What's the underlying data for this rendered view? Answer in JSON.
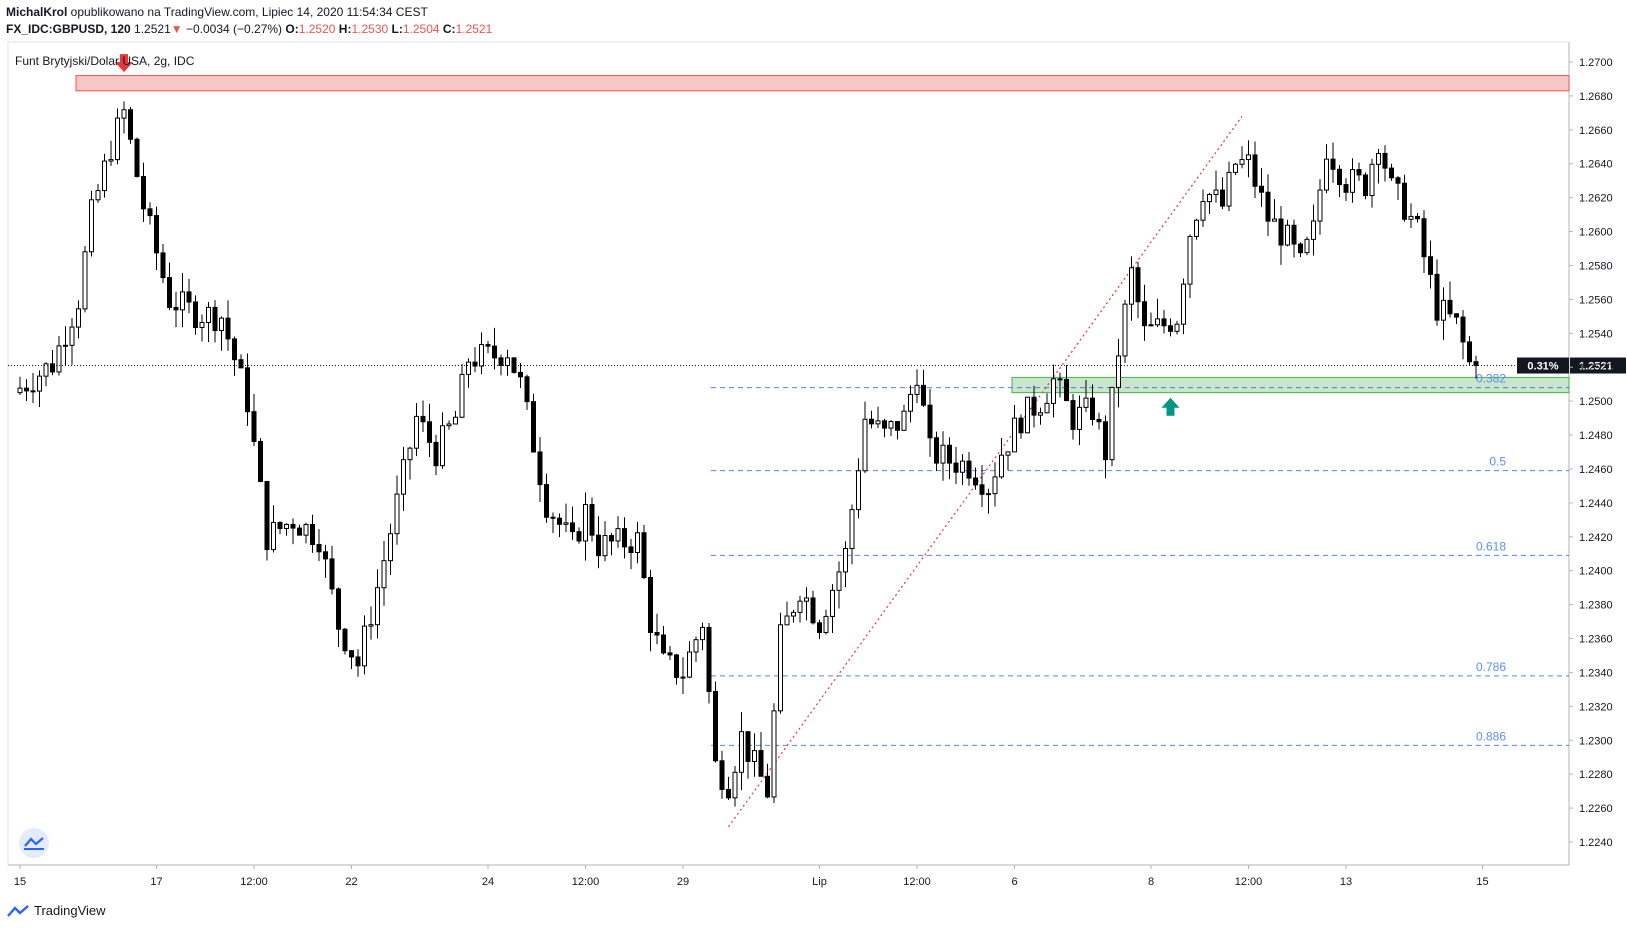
{
  "header": {
    "author": "MichalKrol",
    "published_text": " opublikowano na TradingView.com, Lipiec 14, 2020 11:54:34 CEST",
    "symbol": "FX_IDC:GBPUSD, 120",
    "last": "1.2521",
    "change": "−0.0034 (−0.27%)",
    "open_label": "O:",
    "open": "1.2520",
    "high_label": "H:",
    "high": "1.2530",
    "low_label": "L:",
    "low": "1.2504",
    "close_label": "C:",
    "close": "1.2521"
  },
  "footer": {
    "brand": "TradingView"
  },
  "colors": {
    "accent_red": "#ef5350",
    "resistance_fill": "#f7c6c6",
    "support_fill": "#c8e6c9",
    "fib_line": "#2962ff",
    "up_arrow": "#009688",
    "down_arrow": "#e53935"
  },
  "chart_data": {
    "type": "candlestick",
    "title": "Funt Brytyjski/Dolar USA, 2g, IDC",
    "ylim": [
      1.2226,
      1.2712
    ],
    "y_ticks": [
      "1.2700",
      "1.2680",
      "1.2660",
      "1.2640",
      "1.2620",
      "1.2600",
      "1.2580",
      "1.2560",
      "1.2540",
      "1.2520",
      "1.2500",
      "1.2480",
      "1.2460",
      "1.2440",
      "1.2420",
      "1.2400",
      "1.2380",
      "1.2360",
      "1.2340",
      "1.2320",
      "1.2300",
      "1.2280",
      "1.2260",
      "1.2240"
    ],
    "x_ticks": [
      {
        "label": "15",
        "i": 0
      },
      {
        "label": "17",
        "i": 21
      },
      {
        "label": "12:00",
        "i": 36
      },
      {
        "label": "22",
        "i": 51
      },
      {
        "label": "24",
        "i": 72
      },
      {
        "label": "12:00",
        "i": 87
      },
      {
        "label": "29",
        "i": 102
      },
      {
        "label": "Lip",
        "i": 123
      },
      {
        "label": "12:00",
        "i": 138
      },
      {
        "label": "6",
        "i": 153
      },
      {
        "label": "8",
        "i": 174
      },
      {
        "label": "12:00",
        "i": 189
      },
      {
        "label": "13",
        "i": 204
      },
      {
        "label": "15",
        "i": 225
      }
    ],
    "current_price": "1.2521",
    "current_change_pct": "0.31%",
    "resistance_zone": [
      1.2683,
      1.2692
    ],
    "support_zone": [
      1.2505,
      1.2514
    ],
    "fibonacci": {
      "from": {
        "i": 109,
        "price": 1.2249
      },
      "to": {
        "i": 188,
        "price": 1.2668
      },
      "levels": [
        {
          "label": "0.382",
          "price": 1.2508
        },
        {
          "label": "0.5",
          "price": 1.2459
        },
        {
          "label": "0.618",
          "price": 1.2409
        },
        {
          "label": "0.786",
          "price": 1.2338
        },
        {
          "label": "0.886",
          "price": 1.2297
        }
      ]
    },
    "arrows": [
      {
        "type": "down",
        "i": 16,
        "price": 1.2694
      },
      {
        "type": "up",
        "i": 177,
        "price": 1.2502
      }
    ],
    "anchors": [
      [
        0,
        1.2505
      ],
      [
        6,
        1.2522
      ],
      [
        10,
        1.256
      ],
      [
        12,
        1.261
      ],
      [
        15,
        1.265
      ],
      [
        17,
        1.267
      ],
      [
        20,
        1.2615
      ],
      [
        24,
        1.256
      ],
      [
        28,
        1.2552
      ],
      [
        32,
        1.255
      ],
      [
        36,
        1.25
      ],
      [
        39,
        1.242
      ],
      [
        43,
        1.243
      ],
      [
        47,
        1.242
      ],
      [
        50,
        1.2368
      ],
      [
        53,
        1.2345
      ],
      [
        56,
        1.239
      ],
      [
        59,
        1.244
      ],
      [
        62,
        1.249
      ],
      [
        65,
        1.247
      ],
      [
        68,
        1.249
      ],
      [
        70,
        1.2525
      ],
      [
        74,
        1.2527
      ],
      [
        76,
        1.253
      ],
      [
        78,
        1.251
      ],
      [
        82,
        1.244
      ],
      [
        86,
        1.2415
      ],
      [
        88,
        1.2435
      ],
      [
        90,
        1.2415
      ],
      [
        96,
        1.2418
      ],
      [
        98,
        1.237
      ],
      [
        100,
        1.2345
      ],
      [
        103,
        1.234
      ],
      [
        106,
        1.237
      ],
      [
        108,
        1.2285
      ],
      [
        110,
        1.2275
      ],
      [
        112,
        1.2302
      ],
      [
        114,
        1.2285
      ],
      [
        116,
        1.227
      ],
      [
        118,
        1.236
      ],
      [
        121,
        1.239
      ],
      [
        124,
        1.237
      ],
      [
        128,
        1.241
      ],
      [
        131,
        1.249
      ],
      [
        134,
        1.248
      ],
      [
        137,
        1.249
      ],
      [
        139,
        1.2518
      ],
      [
        141,
        1.247
      ],
      [
        144,
        1.2465
      ],
      [
        147,
        1.2462
      ],
      [
        150,
        1.245
      ],
      [
        152,
        1.247
      ],
      [
        155,
        1.249
      ],
      [
        158,
        1.25
      ],
      [
        160,
        1.2512
      ],
      [
        163,
        1.249
      ],
      [
        166,
        1.2495
      ],
      [
        168,
        1.247
      ],
      [
        170,
        1.253
      ],
      [
        172,
        1.2575
      ],
      [
        174,
        1.254
      ],
      [
        177,
        1.2545
      ],
      [
        179,
        1.255
      ],
      [
        181,
        1.26
      ],
      [
        183,
        1.2625
      ],
      [
        186,
        1.2615
      ],
      [
        188,
        1.264
      ],
      [
        190,
        1.264
      ],
      [
        193,
        1.2608
      ],
      [
        196,
        1.2595
      ],
      [
        198,
        1.258
      ],
      [
        200,
        1.26
      ],
      [
        202,
        1.265
      ],
      [
        205,
        1.263
      ],
      [
        208,
        1.2628
      ],
      [
        210,
        1.2655
      ],
      [
        212,
        1.2625
      ],
      [
        214,
        1.2615
      ],
      [
        216,
        1.26
      ],
      [
        219,
        1.2555
      ],
      [
        222,
        1.2545
      ],
      [
        224,
        1.2522
      ]
    ]
  }
}
